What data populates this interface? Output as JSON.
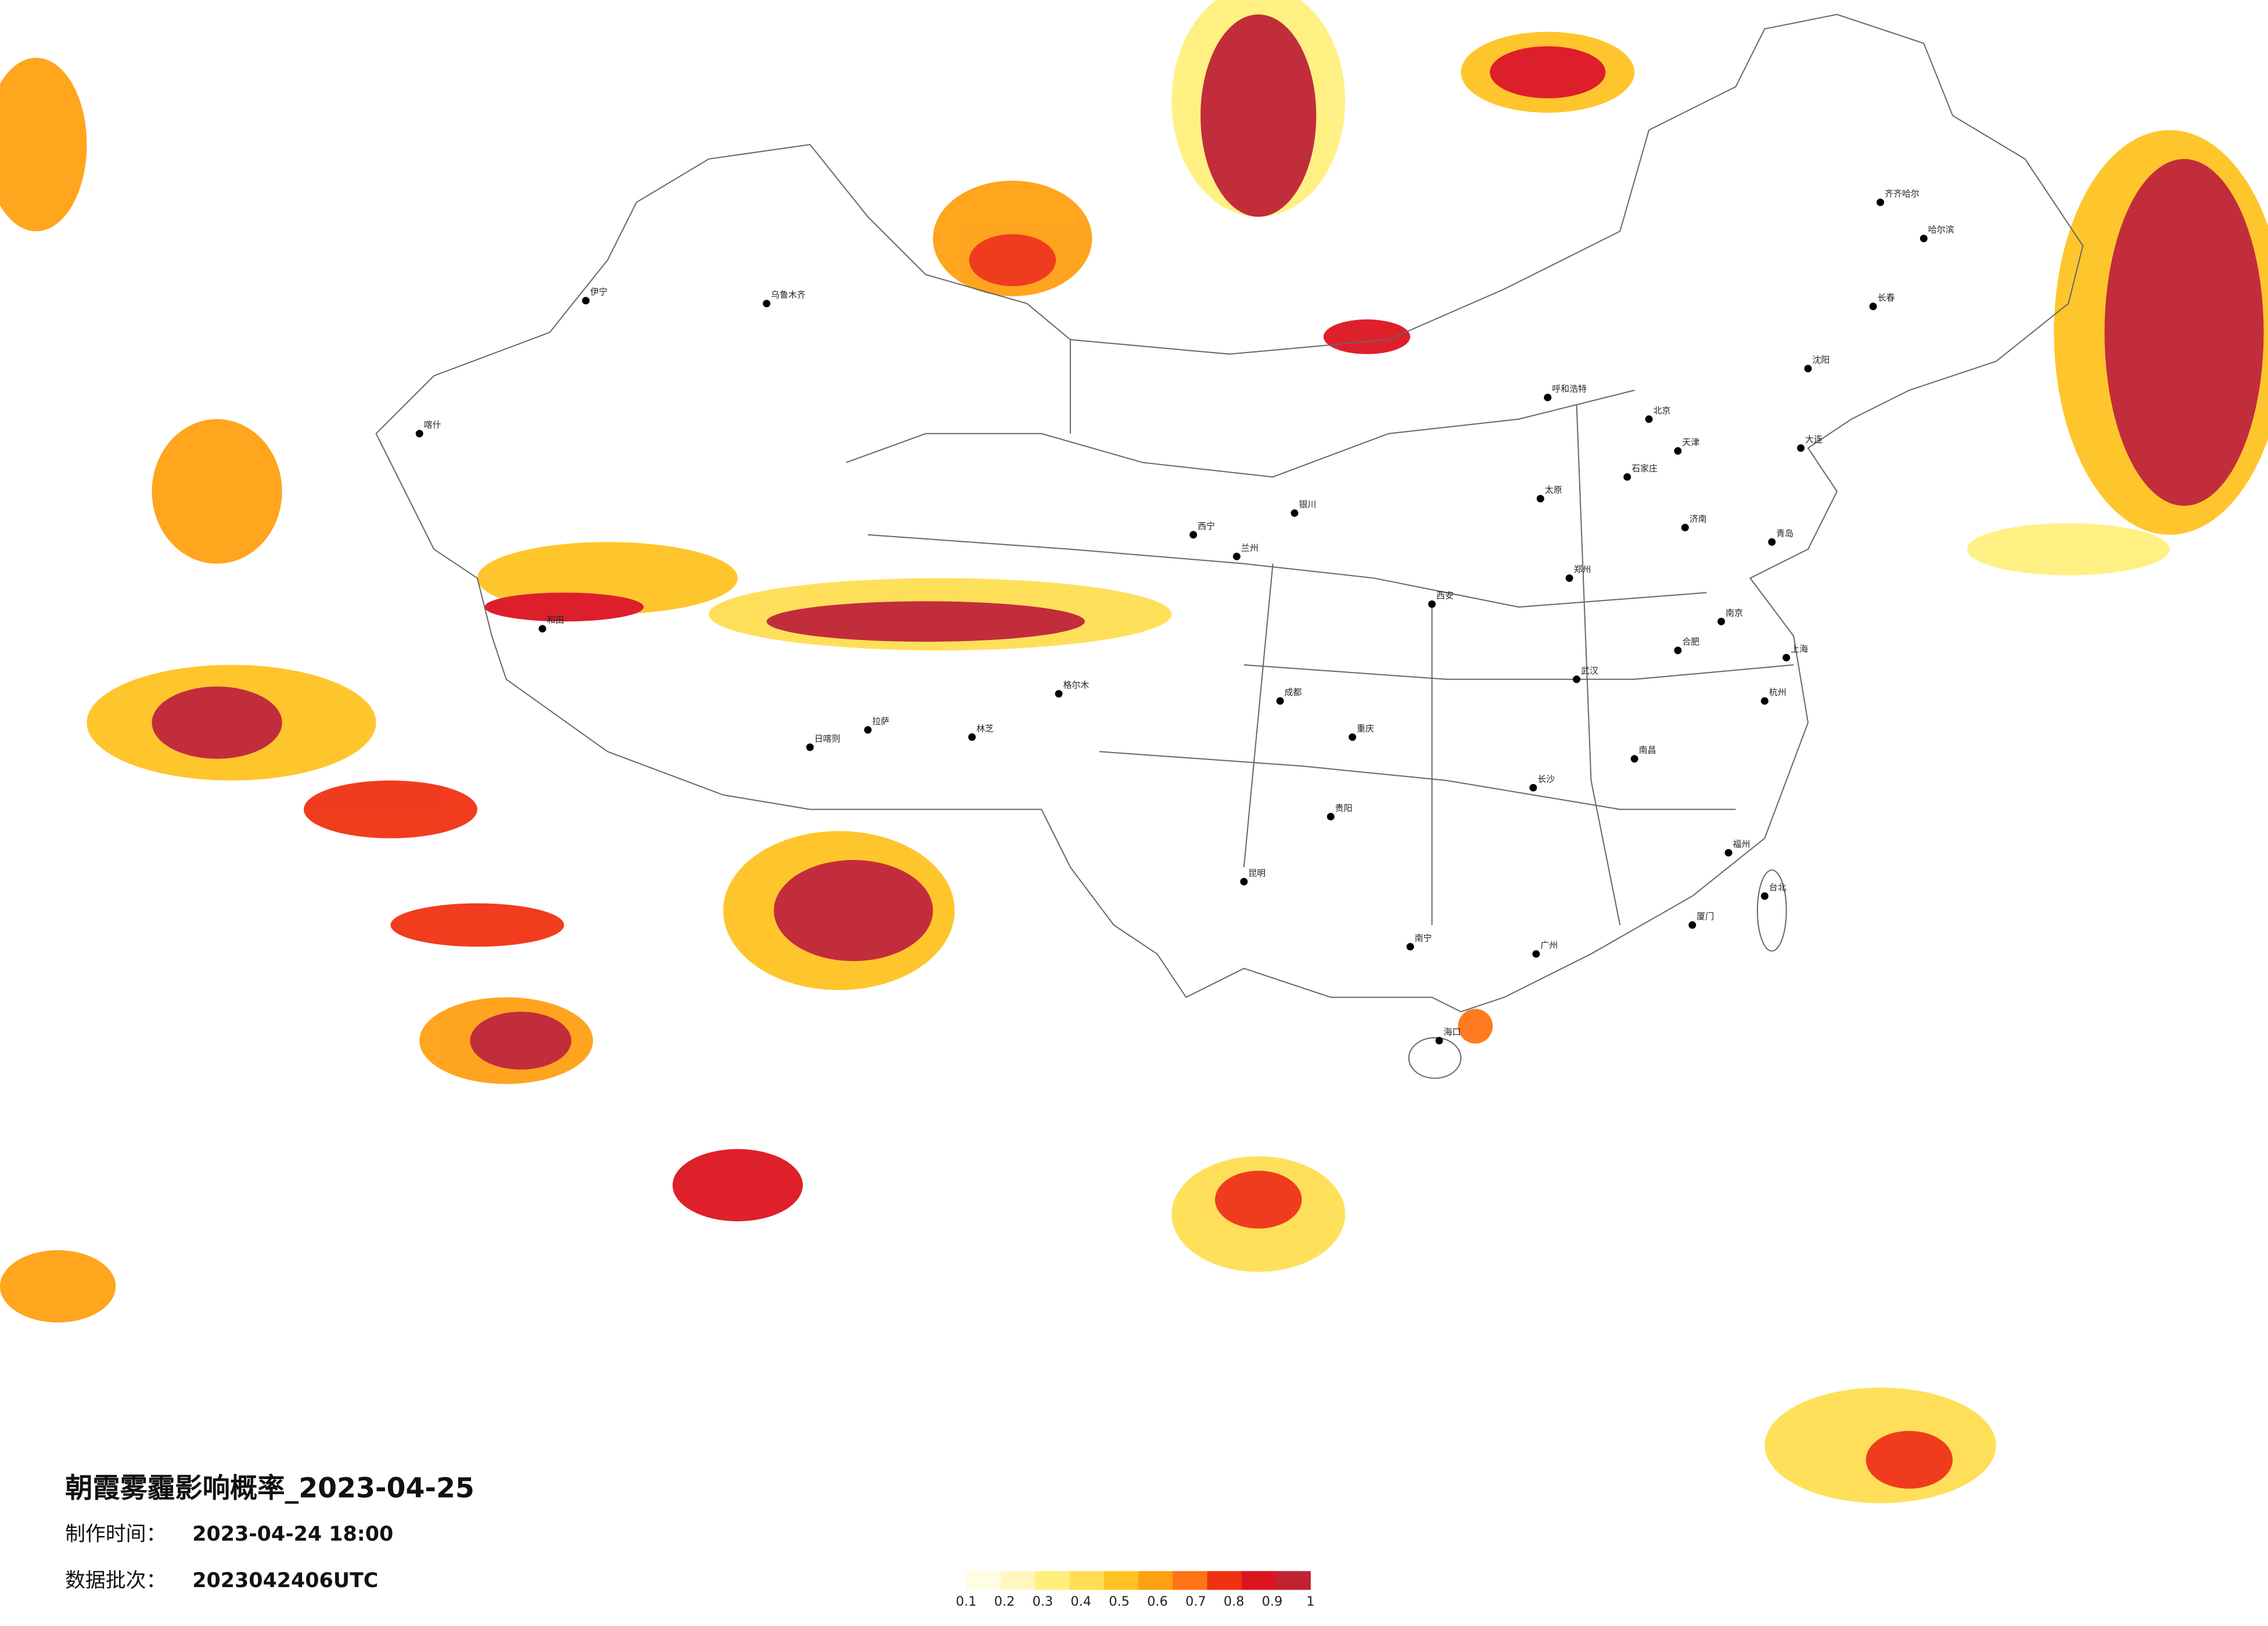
{
  "title": "朝霞雾霾影响概率_2023-04-25",
  "made_label": "制作时间：",
  "made_time": "2023-04-24 18:00",
  "batch_label": "数据批次：",
  "batch": "2023042406UTC",
  "legend": {
    "ticks": [
      0.1,
      0.2,
      0.3,
      0.4,
      0.5,
      0.6,
      0.7,
      0.8,
      0.9,
      1
    ],
    "colors": [
      "#fffde2",
      "#fff7bf",
      "#fff07e",
      "#ffde52",
      "#ffc222",
      "#ffa012",
      "#ff7414",
      "#f03212",
      "#dc1420",
      "#bf2232"
    ]
  },
  "map": {
    "cities": [
      "北京",
      "天津",
      "石家庄",
      "太原",
      "呼和浩特",
      "沈阳",
      "长春",
      "哈尔滨",
      "济南",
      "郑州",
      "西安",
      "兰州",
      "西宁",
      "银川",
      "乌鲁木齐",
      "拉萨",
      "成都",
      "重庆",
      "贵阳",
      "昆明",
      "南宁",
      "广州",
      "长沙",
      "武汉",
      "南昌",
      "合肥",
      "南京",
      "上海",
      "杭州",
      "福州",
      "台北",
      "海口",
      "喀什",
      "和田",
      "伊宁",
      "齐齐哈尔",
      "大连",
      "青岛",
      "厦门",
      "日喀则",
      "林芝",
      "格尔木"
    ]
  }
}
